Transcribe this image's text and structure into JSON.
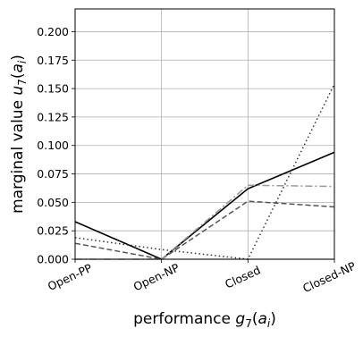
{
  "chart_data": {
    "type": "line",
    "title": "",
    "xlabel": {
      "prefix": "performance ",
      "symbol": "g",
      "sub": "7",
      "open": "(",
      "var": "a",
      "var_sub": "i",
      "close": ")"
    },
    "ylabel": {
      "prefix": "marginal value ",
      "symbol": "u",
      "sub": "7",
      "open": "(",
      "var": "a",
      "var_sub": "i",
      "close": ")"
    },
    "categories": [
      "Open-PP",
      "Open-NP",
      "Closed",
      "Closed-NP"
    ],
    "yticks": [
      "0.000",
      "0.025",
      "0.050",
      "0.075",
      "0.100",
      "0.125",
      "0.150",
      "0.175",
      "0.200"
    ],
    "ylim": [
      0,
      0.22
    ],
    "grid": true,
    "series": [
      {
        "style": "solid",
        "color": "#000000",
        "values": [
          0.033,
          0.0,
          0.062,
          0.094
        ]
      },
      {
        "style": "dashed",
        "color": "#555555",
        "values": [
          0.014,
          0.0,
          0.051,
          0.046
        ]
      },
      {
        "style": "dashdot",
        "color": "#999999",
        "values": [
          0.0,
          0.0,
          0.065,
          0.064
        ]
      },
      {
        "style": "dotted",
        "color": "#333333",
        "values": [
          0.019,
          0.0085,
          0.0,
          0.154
        ]
      },
      {
        "style": "solid-thin",
        "color": "#aaaaaa",
        "values": [
          0.0,
          0.0,
          0.0,
          0.0
        ]
      }
    ]
  }
}
